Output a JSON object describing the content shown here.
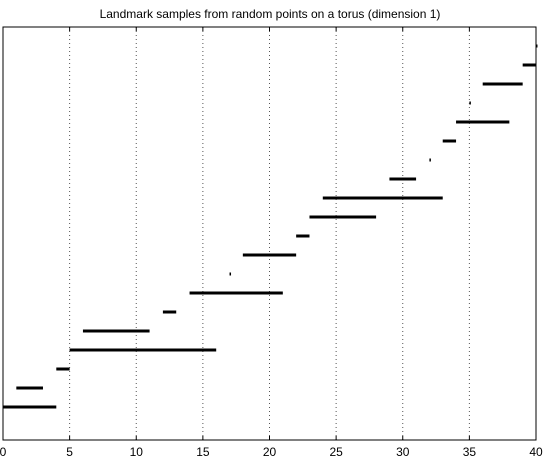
{
  "chart_data": {
    "type": "barcode",
    "title": "Landmark samples from random points on a torus (dimension 1)",
    "xlabel": "",
    "ylabel": "",
    "xlim": [
      0,
      40
    ],
    "x_ticks": [
      0,
      5,
      10,
      15,
      20,
      25,
      30,
      35,
      40
    ],
    "x_tick_labels": [
      "0",
      "5",
      "10",
      "15",
      "20",
      "25",
      "30",
      "35",
      "40"
    ],
    "grid": {
      "x": true,
      "y": false,
      "style": "dotted"
    },
    "bar_color": "#000000",
    "intervals": [
      {
        "start": 0.0,
        "end": 4.0
      },
      {
        "start": 1.0,
        "end": 3.0
      },
      {
        "start": 4.0,
        "end": 5.0
      },
      {
        "start": 5.0,
        "end": 16.0
      },
      {
        "start": 6.0,
        "end": 11.0
      },
      {
        "start": 12.0,
        "end": 13.0
      },
      {
        "start": 14.0,
        "end": 21.0
      },
      {
        "start": 17.0,
        "end": 17.1
      },
      {
        "start": 18.0,
        "end": 22.0
      },
      {
        "start": 22.0,
        "end": 23.0
      },
      {
        "start": 23.0,
        "end": 28.0
      },
      {
        "start": 24.0,
        "end": 33.0
      },
      {
        "start": 29.0,
        "end": 31.0
      },
      {
        "start": 32.0,
        "end": 32.1
      },
      {
        "start": 33.0,
        "end": 34.0
      },
      {
        "start": 34.0,
        "end": 38.0
      },
      {
        "start": 35.0,
        "end": 35.1
      },
      {
        "start": 36.0,
        "end": 39.0
      },
      {
        "start": 39.0,
        "end": 40.0
      },
      {
        "start": 40.0,
        "end": 40.1
      }
    ]
  }
}
